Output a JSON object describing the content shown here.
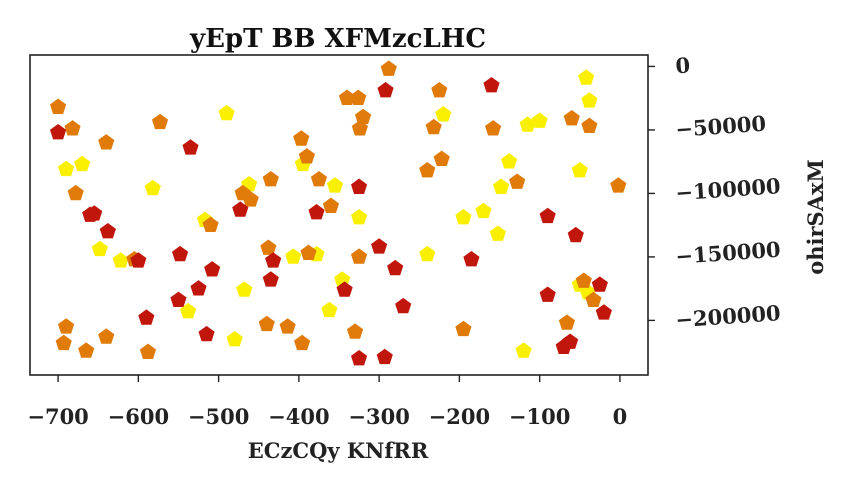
{
  "chart_data": {
    "type": "scatter",
    "title": "yEpT BB  XFMzcLHC",
    "xlabel": "ECzCQy KNfRR",
    "ylabel": "ohirSAxM",
    "xlim": [
      -735,
      35
    ],
    "ylim": [
      -243000,
      9000
    ],
    "xticks": [
      -700,
      -600,
      -500,
      -400,
      -300,
      -200,
      -100,
      0
    ],
    "xtick_labels": [
      "−700",
      "−600",
      "−500",
      "−400",
      "−300",
      "−200",
      "−100",
      "0"
    ],
    "yticks": [
      0,
      -50000,
      -100000,
      -150000,
      -200000
    ],
    "ytick_labels": [
      "0",
      "−50000",
      "−100000",
      "−150000",
      "−200000"
    ],
    "y_axis_side": "right",
    "y_tick_label_rotation_deg": -4,
    "marker": "pentagon",
    "grid": false,
    "legend": "none",
    "colors": {
      "red": "#c0160c",
      "orange": "#e07a08",
      "yellow": "#f8f000"
    },
    "points": {
      "red": [
        [
          -700,
          -52000
        ],
        [
          -660,
          -117000
        ],
        [
          -655,
          -116000
        ],
        [
          -638,
          -130000
        ],
        [
          -600,
          -153000
        ],
        [
          -590,
          -198000
        ],
        [
          -550,
          -184000
        ],
        [
          -548,
          -148000
        ],
        [
          -535,
          -64000
        ],
        [
          -525,
          -175000
        ],
        [
          -515,
          -211000
        ],
        [
          -508,
          -160000
        ],
        [
          -473,
          -113000
        ],
        [
          -435,
          -168000
        ],
        [
          -432,
          -153000
        ],
        [
          -378,
          -115000
        ],
        [
          -343,
          -176000
        ],
        [
          -325,
          -95000
        ],
        [
          -325,
          -230000
        ],
        [
          -300,
          -142000
        ],
        [
          -293,
          -229000
        ],
        [
          -292,
          -19000
        ],
        [
          -280,
          -159000
        ],
        [
          -270,
          -189000
        ],
        [
          -185,
          -152000
        ],
        [
          -160,
          -15000
        ],
        [
          -90,
          -118000
        ],
        [
          -90,
          -180000
        ],
        [
          -55,
          -133000
        ],
        [
          -70,
          -221000
        ],
        [
          -62,
          -217000
        ],
        [
          -25,
          -172000
        ],
        [
          -20,
          -194000
        ]
      ],
      "orange": [
        [
          -700,
          -32000
        ],
        [
          -693,
          -218000
        ],
        [
          -690,
          -205000
        ],
        [
          -682,
          -49000
        ],
        [
          -678,
          -100000
        ],
        [
          -665,
          -224000
        ],
        [
          -640,
          -60000
        ],
        [
          -640,
          -213000
        ],
        [
          -605,
          -152000
        ],
        [
          -588,
          -225000
        ],
        [
          -573,
          -44000
        ],
        [
          -510,
          -125000
        ],
        [
          -470,
          -100000
        ],
        [
          -460,
          -105000
        ],
        [
          -440,
          -203000
        ],
        [
          -438,
          -143000
        ],
        [
          -435,
          -89000
        ],
        [
          -414,
          -205000
        ],
        [
          -397,
          -57000
        ],
        [
          -396,
          -218000
        ],
        [
          -390,
          -71000
        ],
        [
          -388,
          -147000
        ],
        [
          -375,
          -89000
        ],
        [
          -360,
          -110000
        ],
        [
          -340,
          -25000
        ],
        [
          -326,
          -25000
        ],
        [
          -324,
          -49000
        ],
        [
          -320,
          -40000
        ],
        [
          -325,
          -150000
        ],
        [
          -330,
          -209000
        ],
        [
          -240,
          -82000
        ],
        [
          -232,
          -48000
        ],
        [
          -225,
          -19000
        ],
        [
          -222,
          -73000
        ],
        [
          -195,
          -207000
        ],
        [
          -158,
          -49000
        ],
        [
          -128,
          -91000
        ],
        [
          -60,
          -41000
        ],
        [
          -45,
          -169000
        ],
        [
          -38,
          -47000
        ],
        [
          -33,
          -184000
        ],
        [
          -66,
          -202000
        ],
        [
          -2,
          -94000
        ],
        [
          -288,
          -2000
        ]
      ],
      "yellow": [
        [
          -690,
          -81000
        ],
        [
          -670,
          -77000
        ],
        [
          -648,
          -144000
        ],
        [
          -622,
          -153000
        ],
        [
          -582,
          -96000
        ],
        [
          -538,
          -193000
        ],
        [
          -517,
          -121000
        ],
        [
          -490,
          -37000
        ],
        [
          -480,
          -215000
        ],
        [
          -468,
          -176000
        ],
        [
          -462,
          -93000
        ],
        [
          -407,
          -150000
        ],
        [
          -395,
          -77000
        ],
        [
          -378,
          -148000
        ],
        [
          -362,
          -192000
        ],
        [
          -355,
          -94000
        ],
        [
          -346,
          -168000
        ],
        [
          -325,
          -119000
        ],
        [
          -240,
          -148000
        ],
        [
          -220,
          -38000
        ],
        [
          -195,
          -119000
        ],
        [
          -170,
          -114000
        ],
        [
          -152,
          -132000
        ],
        [
          -148,
          -95000
        ],
        [
          -138,
          -75000
        ],
        [
          -115,
          -46000
        ],
        [
          -100,
          -43000
        ],
        [
          -120,
          -224000
        ],
        [
          -50,
          -82000
        ],
        [
          -50,
          -172000
        ],
        [
          -42,
          -9000
        ],
        [
          -38,
          -27000
        ],
        [
          -40,
          -178000
        ]
      ]
    }
  }
}
